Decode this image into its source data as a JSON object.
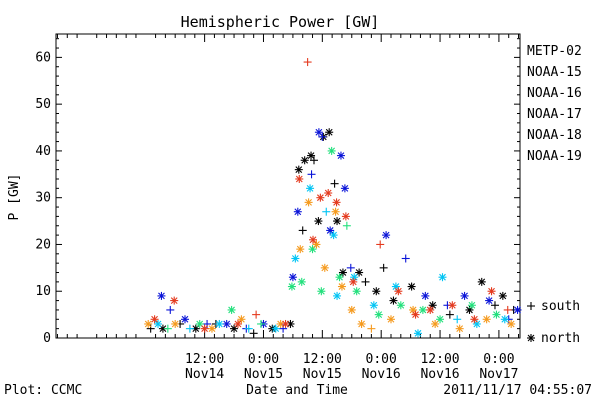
{
  "footer": {
    "left_label": "Plot: CCMC",
    "timestamp": "2011/11/17 04:55:07"
  },
  "chart_data": {
    "type": "scatter",
    "title": "Hemispheric Power [GW]",
    "xlabel": "Date and Time",
    "ylabel": "P [GW]",
    "ylim": [
      0,
      65
    ],
    "yticks": [
      0,
      10,
      20,
      30,
      40,
      50,
      60
    ],
    "xlim_hours": [
      -18.3,
      76.3
    ],
    "x_unit_note": "hours from 2011-11-14 00:00 UT",
    "xticks": [
      {
        "hours": 12,
        "time": "12:00",
        "date": "Nov14"
      },
      {
        "hours": 24,
        "time": "0:00",
        "date": "Nov15"
      },
      {
        "hours": 36,
        "time": "12:00",
        "date": "Nov15"
      },
      {
        "hours": 48,
        "time": "0:00",
        "date": "Nov16"
      },
      {
        "hours": 60,
        "time": "12:00",
        "date": "Nov16"
      },
      {
        "hours": 72,
        "time": "0:00",
        "date": "Nov17"
      }
    ],
    "grid": false,
    "legend_position": "right",
    "marker_legend": [
      {
        "symbol": "+",
        "label": "south"
      },
      {
        "symbol": "*",
        "label": "north"
      }
    ],
    "series": [
      {
        "name": "METP-02",
        "color": "#000000",
        "points": [
          {
            "x": 1.0,
            "y": 2,
            "m": "+"
          },
          {
            "x": 3.5,
            "y": 2,
            "m": "*"
          },
          {
            "x": 7.0,
            "y": 3,
            "m": "+"
          },
          {
            "x": 10.2,
            "y": 2,
            "m": "*"
          },
          {
            "x": 14.3,
            "y": 3,
            "m": "+"
          },
          {
            "x": 18.0,
            "y": 2,
            "m": "*"
          },
          {
            "x": 22.0,
            "y": 1,
            "m": "+"
          },
          {
            "x": 25.8,
            "y": 2,
            "m": "*"
          },
          {
            "x": 29.5,
            "y": 3,
            "m": "*"
          },
          {
            "x": 31.2,
            "y": 36,
            "m": "*"
          },
          {
            "x": 32.4,
            "y": 38,
            "m": "*"
          },
          {
            "x": 33.7,
            "y": 39,
            "m": "*"
          },
          {
            "x": 34.3,
            "y": 38,
            "m": "+"
          },
          {
            "x": 35.2,
            "y": 25,
            "m": "*"
          },
          {
            "x": 36.2,
            "y": 43,
            "m": "*"
          },
          {
            "x": 37.4,
            "y": 44,
            "m": "*"
          },
          {
            "x": 38.5,
            "y": 33,
            "m": "+"
          },
          {
            "x": 39.0,
            "y": 25,
            "m": "*"
          },
          {
            "x": 40.2,
            "y": 14,
            "m": "*"
          },
          {
            "x": 32.0,
            "y": 23,
            "m": "+"
          },
          {
            "x": 43.5,
            "y": 14,
            "m": "*"
          },
          {
            "x": 44.8,
            "y": 12,
            "m": "+"
          },
          {
            "x": 47.0,
            "y": 10,
            "m": "*"
          },
          {
            "x": 48.5,
            "y": 15,
            "m": "+"
          },
          {
            "x": 50.5,
            "y": 8,
            "m": "*"
          },
          {
            "x": 54.2,
            "y": 11,
            "m": "*"
          },
          {
            "x": 58.5,
            "y": 7,
            "m": "*"
          },
          {
            "x": 62.0,
            "y": 5,
            "m": "+"
          },
          {
            "x": 66.0,
            "y": 6,
            "m": "*"
          },
          {
            "x": 68.5,
            "y": 12,
            "m": "*"
          },
          {
            "x": 71.2,
            "y": 7,
            "m": "+"
          },
          {
            "x": 72.8,
            "y": 9,
            "m": "*"
          },
          {
            "x": 75.0,
            "y": 6,
            "m": "+"
          }
        ]
      },
      {
        "name": "NOAA-15",
        "color": "#0a14d8",
        "points": [
          {
            "x": 3.2,
            "y": 9,
            "m": "*"
          },
          {
            "x": 5.0,
            "y": 6,
            "m": "+"
          },
          {
            "x": 8.0,
            "y": 4,
            "m": "*"
          },
          {
            "x": 12.5,
            "y": 3,
            "m": "+"
          },
          {
            "x": 16.5,
            "y": 3,
            "m": "*"
          },
          {
            "x": 20.5,
            "y": 2,
            "m": "+"
          },
          {
            "x": 24.0,
            "y": 3,
            "m": "*"
          },
          {
            "x": 28.0,
            "y": 2,
            "m": "+"
          },
          {
            "x": 30.0,
            "y": 13,
            "m": "*"
          },
          {
            "x": 31.0,
            "y": 27,
            "m": "*"
          },
          {
            "x": 33.8,
            "y": 35,
            "m": "+"
          },
          {
            "x": 35.3,
            "y": 44,
            "m": "*"
          },
          {
            "x": 36.0,
            "y": 43,
            "m": "+"
          },
          {
            "x": 37.6,
            "y": 23,
            "m": "*"
          },
          {
            "x": 39.8,
            "y": 39,
            "m": "*"
          },
          {
            "x": 40.6,
            "y": 32,
            "m": "*"
          },
          {
            "x": 41.8,
            "y": 15,
            "m": "+"
          },
          {
            "x": 49.0,
            "y": 22,
            "m": "*"
          },
          {
            "x": 53.0,
            "y": 17,
            "m": "+"
          },
          {
            "x": 57.0,
            "y": 9,
            "m": "*"
          },
          {
            "x": 61.5,
            "y": 7,
            "m": "+"
          },
          {
            "x": 65.0,
            "y": 9,
            "m": "*"
          },
          {
            "x": 70.0,
            "y": 8,
            "m": "*"
          },
          {
            "x": 74.0,
            "y": 4,
            "m": "+"
          },
          {
            "x": 75.8,
            "y": 6,
            "m": "*"
          }
        ]
      },
      {
        "name": "NOAA-16",
        "color": "#00c4f4",
        "points": [
          {
            "x": 2.5,
            "y": 3,
            "m": "*"
          },
          {
            "x": 9.0,
            "y": 2,
            "m": "+"
          },
          {
            "x": 15.0,
            "y": 3,
            "m": "*"
          },
          {
            "x": 21.0,
            "y": 2,
            "m": "+"
          },
          {
            "x": 26.5,
            "y": 2,
            "m": "*"
          },
          {
            "x": 30.5,
            "y": 17,
            "m": "*"
          },
          {
            "x": 33.5,
            "y": 32,
            "m": "*"
          },
          {
            "x": 36.8,
            "y": 27,
            "m": "+"
          },
          {
            "x": 38.3,
            "y": 22,
            "m": "*"
          },
          {
            "x": 39.0,
            "y": 9,
            "m": "*"
          },
          {
            "x": 42.5,
            "y": 13,
            "m": "*"
          },
          {
            "x": 46.5,
            "y": 7,
            "m": "*"
          },
          {
            "x": 51.0,
            "y": 11,
            "m": "*"
          },
          {
            "x": 55.5,
            "y": 1,
            "m": "*"
          },
          {
            "x": 60.5,
            "y": 13,
            "m": "*"
          },
          {
            "x": 63.5,
            "y": 4,
            "m": "+"
          },
          {
            "x": 67.5,
            "y": 3,
            "m": "*"
          },
          {
            "x": 73.2,
            "y": 4,
            "m": "*"
          }
        ]
      },
      {
        "name": "NOAA-17",
        "color": "#22e07c",
        "points": [
          {
            "x": 4.5,
            "y": 2,
            "m": "+"
          },
          {
            "x": 11.0,
            "y": 3,
            "m": "*"
          },
          {
            "x": 17.5,
            "y": 6,
            "m": "*"
          },
          {
            "x": 23.5,
            "y": 3,
            "m": "+"
          },
          {
            "x": 29.8,
            "y": 11,
            "m": "*"
          },
          {
            "x": 31.8,
            "y": 12,
            "m": "*"
          },
          {
            "x": 34.0,
            "y": 19,
            "m": "*"
          },
          {
            "x": 35.8,
            "y": 10,
            "m": "*"
          },
          {
            "x": 37.9,
            "y": 40,
            "m": "*"
          },
          {
            "x": 39.5,
            "y": 13,
            "m": "*"
          },
          {
            "x": 41.0,
            "y": 24,
            "m": "+"
          },
          {
            "x": 43.0,
            "y": 10,
            "m": "*"
          },
          {
            "x": 47.5,
            "y": 5,
            "m": "*"
          },
          {
            "x": 52.0,
            "y": 7,
            "m": "*"
          },
          {
            "x": 56.5,
            "y": 6,
            "m": "*"
          },
          {
            "x": 60.0,
            "y": 4,
            "m": "*"
          },
          {
            "x": 66.5,
            "y": 7,
            "m": "*"
          },
          {
            "x": 71.5,
            "y": 5,
            "m": "*"
          }
        ]
      },
      {
        "name": "NOAA-18",
        "color": "#f59a1e",
        "points": [
          {
            "x": 0.5,
            "y": 3,
            "m": "*"
          },
          {
            "x": 6.0,
            "y": 3,
            "m": "*"
          },
          {
            "x": 13.5,
            "y": 2,
            "m": "*"
          },
          {
            "x": 19.5,
            "y": 4,
            "m": "*"
          },
          {
            "x": 27.5,
            "y": 3,
            "m": "*"
          },
          {
            "x": 31.5,
            "y": 19,
            "m": "*"
          },
          {
            "x": 33.2,
            "y": 29,
            "m": "*"
          },
          {
            "x": 34.8,
            "y": 20,
            "m": "*"
          },
          {
            "x": 36.5,
            "y": 15,
            "m": "*"
          },
          {
            "x": 38.7,
            "y": 27,
            "m": "*"
          },
          {
            "x": 40.0,
            "y": 11,
            "m": "*"
          },
          {
            "x": 42.0,
            "y": 6,
            "m": "*"
          },
          {
            "x": 44.0,
            "y": 3,
            "m": "*"
          },
          {
            "x": 46.0,
            "y": 2,
            "m": "+"
          },
          {
            "x": 50.0,
            "y": 4,
            "m": "*"
          },
          {
            "x": 54.5,
            "y": 6,
            "m": "*"
          },
          {
            "x": 59.0,
            "y": 3,
            "m": "*"
          },
          {
            "x": 64.0,
            "y": 2,
            "m": "*"
          },
          {
            "x": 69.5,
            "y": 4,
            "m": "*"
          },
          {
            "x": 74.5,
            "y": 3,
            "m": "*"
          }
        ]
      },
      {
        "name": "NOAA-19",
        "color": "#e43a1e",
        "points": [
          {
            "x": 1.8,
            "y": 4,
            "m": "*"
          },
          {
            "x": 5.8,
            "y": 8,
            "m": "*"
          },
          {
            "x": 12.0,
            "y": 2,
            "m": "*"
          },
          {
            "x": 18.8,
            "y": 3,
            "m": "*"
          },
          {
            "x": 22.5,
            "y": 5,
            "m": "+"
          },
          {
            "x": 28.5,
            "y": 3,
            "m": "*"
          },
          {
            "x": 31.3,
            "y": 34,
            "m": "*"
          },
          {
            "x": 33.0,
            "y": 59,
            "m": "+"
          },
          {
            "x": 34.1,
            "y": 21,
            "m": "*"
          },
          {
            "x": 35.6,
            "y": 30,
            "m": "*"
          },
          {
            "x": 37.2,
            "y": 31,
            "m": "*"
          },
          {
            "x": 38.9,
            "y": 29,
            "m": "*"
          },
          {
            "x": 40.8,
            "y": 26,
            "m": "*"
          },
          {
            "x": 42.3,
            "y": 12,
            "m": "*"
          },
          {
            "x": 47.8,
            "y": 20,
            "m": "+"
          },
          {
            "x": 51.5,
            "y": 10,
            "m": "*"
          },
          {
            "x": 55.0,
            "y": 5,
            "m": "*"
          },
          {
            "x": 58.0,
            "y": 6,
            "m": "*"
          },
          {
            "x": 62.5,
            "y": 7,
            "m": "*"
          },
          {
            "x": 67.0,
            "y": 4,
            "m": "*"
          },
          {
            "x": 70.5,
            "y": 10,
            "m": "*"
          },
          {
            "x": 73.8,
            "y": 6,
            "m": "+"
          }
        ]
      }
    ]
  }
}
